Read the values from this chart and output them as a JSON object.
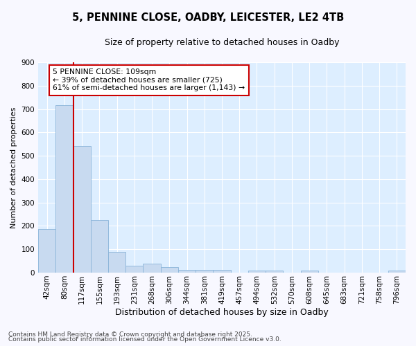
{
  "title1": "5, PENNINE CLOSE, OADBY, LEICESTER, LE2 4TB",
  "title2": "Size of property relative to detached houses in Oadby",
  "xlabel": "Distribution of detached houses by size in Oadby",
  "ylabel": "Number of detached properties",
  "bin_labels": [
    "42sqm",
    "80sqm",
    "117sqm",
    "155sqm",
    "193sqm",
    "231sqm",
    "268sqm",
    "306sqm",
    "344sqm",
    "381sqm",
    "419sqm",
    "457sqm",
    "494sqm",
    "532sqm",
    "570sqm",
    "608sqm",
    "645sqm",
    "683sqm",
    "721sqm",
    "758sqm",
    "796sqm"
  ],
  "bar_values": [
    188,
    717,
    543,
    225,
    90,
    30,
    38,
    24,
    13,
    12,
    12,
    0,
    8,
    10,
    0,
    8,
    0,
    0,
    0,
    0,
    10
  ],
  "bar_color": "#c8daf0",
  "bar_edgecolor": "#8ab4d8",
  "plot_bg_color": "#ddeeff",
  "fig_bg_color": "#f8f8ff",
  "red_line_index": 2,
  "ylim": [
    0,
    900
  ],
  "yticks": [
    0,
    100,
    200,
    300,
    400,
    500,
    600,
    700,
    800,
    900
  ],
  "annotation_text": "5 PENNINE CLOSE: 109sqm\n← 39% of detached houses are smaller (725)\n61% of semi-detached houses are larger (1,143) →",
  "annotation_box_facecolor": "#ffffff",
  "annotation_box_edgecolor": "#cc0000",
  "footnote1": "Contains HM Land Registry data © Crown copyright and database right 2025.",
  "footnote2": "Contains public sector information licensed under the Open Government Licence v3.0.",
  "grid_color": "#ffffff",
  "title1_fontsize": 10.5,
  "title2_fontsize": 9,
  "ylabel_fontsize": 8,
  "xlabel_fontsize": 9,
  "tick_fontsize": 7.5,
  "footnote_fontsize": 6.5,
  "annotation_fontsize": 7.8
}
